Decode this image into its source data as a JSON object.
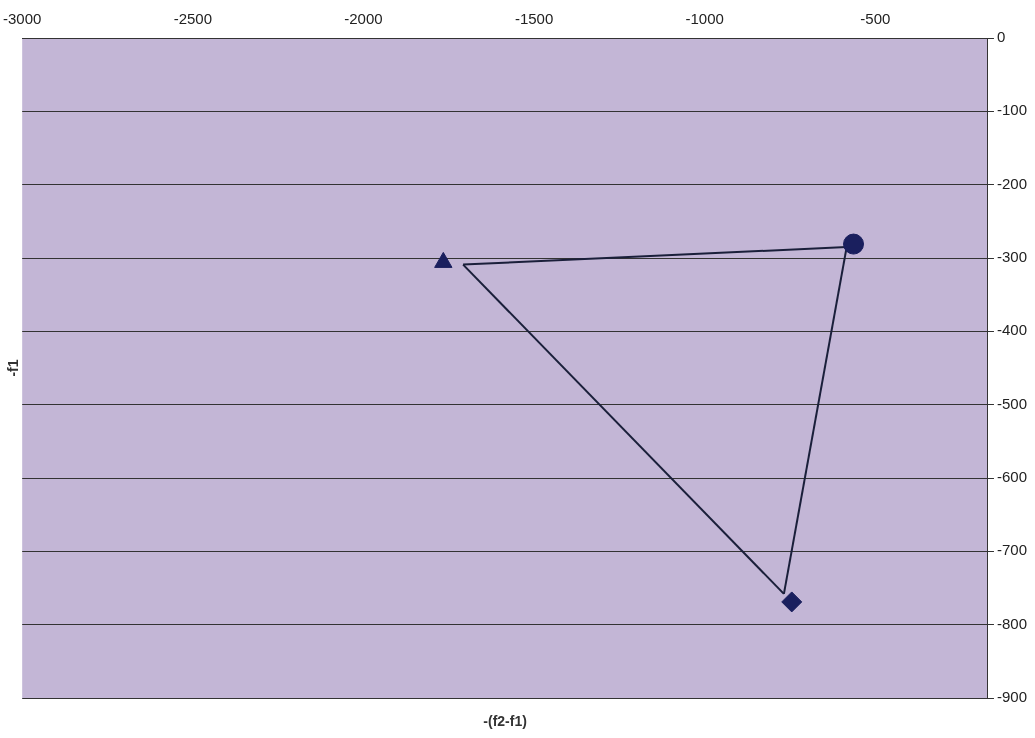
{
  "chart_data": {
    "type": "scatter",
    "xlabel": "-(f2-f1)",
    "ylabel": "-f1",
    "xlim": [
      -3000,
      -170
    ],
    "ylim": [
      -900,
      0
    ],
    "xticks": [
      -3000,
      -2500,
      -2000,
      -1500,
      -1000,
      -500
    ],
    "yticks": [
      0,
      -100,
      -200,
      -300,
      -400,
      -500,
      -600,
      -700,
      -800,
      -900
    ],
    "grid": "y",
    "legend": false,
    "series": [
      {
        "type": "scatter",
        "marker": "triangle",
        "color": "#1a1f5e",
        "x": [
          -1766
        ],
        "values": [
          -306
        ]
      },
      {
        "type": "scatter",
        "marker": "circle",
        "color": "#1a1f5e",
        "x": [
          -564
        ],
        "values": [
          -281
        ]
      },
      {
        "type": "scatter",
        "marker": "diamond",
        "color": "#1a1f5e",
        "x": [
          -745
        ],
        "values": [
          -769
        ]
      },
      {
        "type": "line",
        "marker": "none",
        "line_style": "solid",
        "color": "#1a1f3a",
        "x": [
          -1708,
          -584
        ],
        "values": [
          -309,
          -285
        ]
      },
      {
        "type": "line",
        "marker": "none",
        "line_style": "solid",
        "color": "#1a1f3a",
        "x": [
          -584,
          -768
        ],
        "values": [
          -285,
          -758
        ]
      },
      {
        "type": "line",
        "marker": "none",
        "line_style": "solid",
        "color": "#1a1f3a",
        "x": [
          -768,
          -1708
        ],
        "values": [
          -758,
          -309
        ]
      }
    ]
  }
}
